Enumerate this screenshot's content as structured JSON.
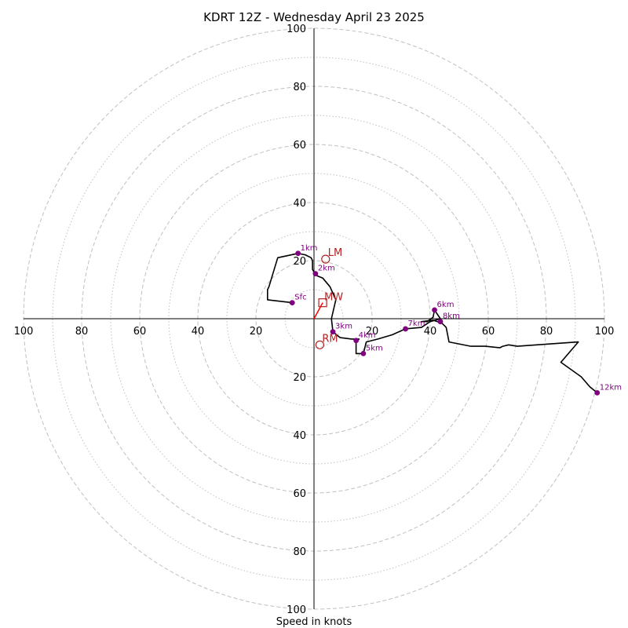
{
  "chart_data": {
    "type": "line",
    "title": "KDRT 12Z - Wednesday April 23 2025",
    "xlabel": "Speed in knots",
    "axis_max": 100,
    "ring_major": [
      20,
      40,
      60,
      80,
      100
    ],
    "ring_minor": [
      10,
      30,
      50,
      70,
      90
    ],
    "tick_labels": [
      "20",
      "40",
      "60",
      "80",
      "100"
    ],
    "hodograph": [
      [
        -7.5,
        5.5
      ],
      [
        -16,
        6.5
      ],
      [
        -16,
        10
      ],
      [
        -15.5,
        11
      ],
      [
        -12.5,
        21
      ],
      [
        -5.5,
        22.5
      ],
      [
        -3,
        22
      ],
      [
        -1,
        21
      ],
      [
        -0.5,
        20
      ],
      [
        -0.5,
        19
      ],
      [
        -0.5,
        18
      ],
      [
        -0.5,
        17
      ],
      [
        0.5,
        15
      ],
      [
        3,
        14
      ],
      [
        5.5,
        11
      ],
      [
        7.5,
        6.5
      ],
      [
        6,
        0
      ],
      [
        6.5,
        -4.5
      ],
      [
        9,
        -6.5
      ],
      [
        13,
        -7
      ],
      [
        15.5,
        -7
      ],
      [
        14.5,
        -8
      ],
      [
        14.5,
        -12
      ],
      [
        17,
        -12
      ],
      [
        18,
        -8
      ],
      [
        22,
        -7
      ],
      [
        27,
        -5.5
      ],
      [
        31.5,
        -3.5
      ],
      [
        37,
        -3
      ],
      [
        40,
        -1
      ],
      [
        43.5,
        0
      ],
      [
        41.5,
        3
      ],
      [
        41,
        0.5
      ],
      [
        39,
        -1
      ],
      [
        37,
        -1
      ],
      [
        41,
        -0.5
      ],
      [
        44,
        -1.5
      ],
      [
        45.5,
        -3
      ],
      [
        46.5,
        -8
      ],
      [
        54,
        -9.5
      ],
      [
        59,
        -9.5
      ],
      [
        64,
        -10
      ],
      [
        65,
        -9.5
      ],
      [
        67,
        -9
      ],
      [
        70,
        -9.5
      ],
      [
        91,
        -8
      ],
      [
        85,
        -15
      ],
      [
        92,
        -20
      ],
      [
        95,
        -23.5
      ],
      [
        97.5,
        -25.5
      ]
    ],
    "levels": [
      {
        "label": "Sfc",
        "u": -7.5,
        "v": 5.5
      },
      {
        "label": "1km",
        "u": -5.5,
        "v": 22.5
      },
      {
        "label": "2km",
        "u": 0.5,
        "v": 15.5
      },
      {
        "label": "3km",
        "u": 6.5,
        "v": -4.5
      },
      {
        "label": "4km",
        "u": 14.5,
        "v": -7.5
      },
      {
        "label": "5km",
        "u": 17,
        "v": -12
      },
      {
        "label": "6km",
        "u": 41.5,
        "v": 3
      },
      {
        "label": "7km",
        "u": 31.5,
        "v": -3.5
      },
      {
        "label": "8km",
        "u": 43.5,
        "v": -1
      },
      {
        "label": "12km",
        "u": 97.5,
        "v": -25.5
      }
    ],
    "storm_motion": {
      "lm": {
        "label": "LM",
        "u": 4,
        "v": 20.5
      },
      "rm": {
        "label": "RM",
        "u": 2,
        "v": -9
      },
      "mw": {
        "label": "MW",
        "u": 3,
        "v": 5.5
      }
    },
    "colors": {
      "line": "#000000",
      "points": "#800080",
      "motion": "#b22222",
      "vector": "#ff0000",
      "grid": "#c0c0c0"
    }
  }
}
